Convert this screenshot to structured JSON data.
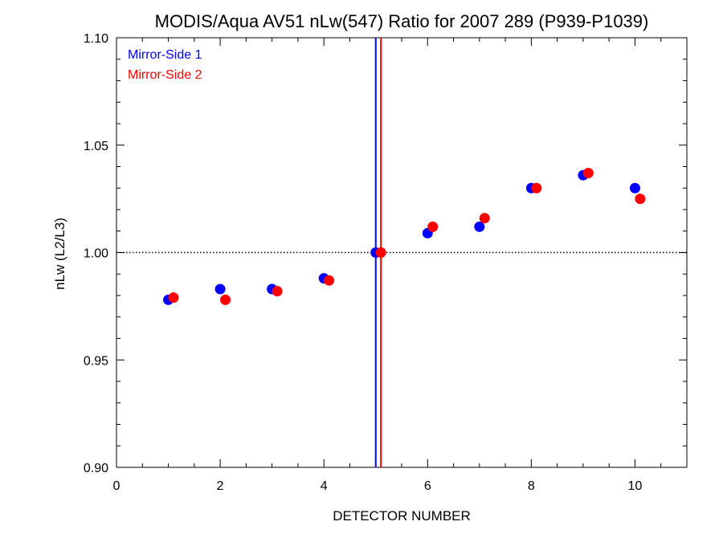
{
  "chart_data": {
    "type": "scatter",
    "title": "MODIS/Aqua AV51 nLw(547) Ratio for 2007 289 (P939-P1039)",
    "xlabel": "DETECTOR NUMBER",
    "ylabel": "nLw (L2/L3)",
    "xlim": [
      0,
      11
    ],
    "ylim": [
      0.9,
      1.1
    ],
    "x_ticks": [
      0,
      2,
      4,
      6,
      8,
      10
    ],
    "x_tick_labels": [
      "0",
      "2",
      "4",
      "6",
      "8",
      "10"
    ],
    "y_ticks": [
      0.9,
      0.95,
      1.0,
      1.05,
      1.1
    ],
    "y_tick_labels": [
      "0.90",
      "0.95",
      "1.00",
      "1.05",
      "1.10"
    ],
    "reference_line_y": 1.0,
    "vertical_lines": [
      {
        "x": 5.0,
        "color": "#0000ff"
      },
      {
        "x": 5.1,
        "color": "#ff0000"
      }
    ],
    "legend_position": "top-left",
    "series": [
      {
        "name": "Mirror-Side 1",
        "color": "#0000ff",
        "x": [
          1,
          2,
          3,
          4,
          5,
          6,
          7,
          8,
          9,
          10
        ],
        "y": [
          0.978,
          0.983,
          0.983,
          0.988,
          1.0,
          1.009,
          1.012,
          1.03,
          1.036,
          1.03
        ]
      },
      {
        "name": "Mirror-Side 2",
        "color": "#ff0000",
        "x": [
          1.1,
          2.1,
          3.1,
          4.1,
          5.1,
          6.1,
          7.1,
          8.1,
          9.1,
          10.1
        ],
        "y": [
          0.979,
          0.978,
          0.982,
          0.987,
          1.0,
          1.012,
          1.016,
          1.03,
          1.037,
          1.025
        ]
      }
    ]
  }
}
